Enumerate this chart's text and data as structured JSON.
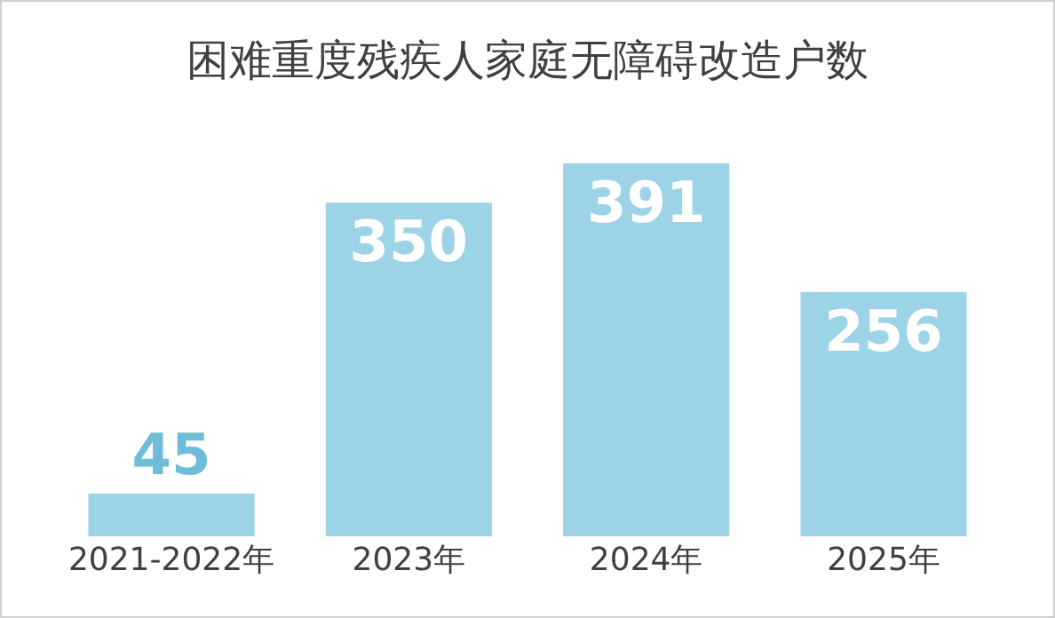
{
  "chart_data": {
    "type": "bar",
    "title": "困难重度残疾人家庭无障碍改造户数",
    "categories": [
      "2021-2022年",
      "2023年",
      "2024年",
      "2025年"
    ],
    "values": [
      45,
      350,
      391,
      256
    ],
    "color": "#9dd3e6",
    "data_labels": true,
    "legend": false
  }
}
